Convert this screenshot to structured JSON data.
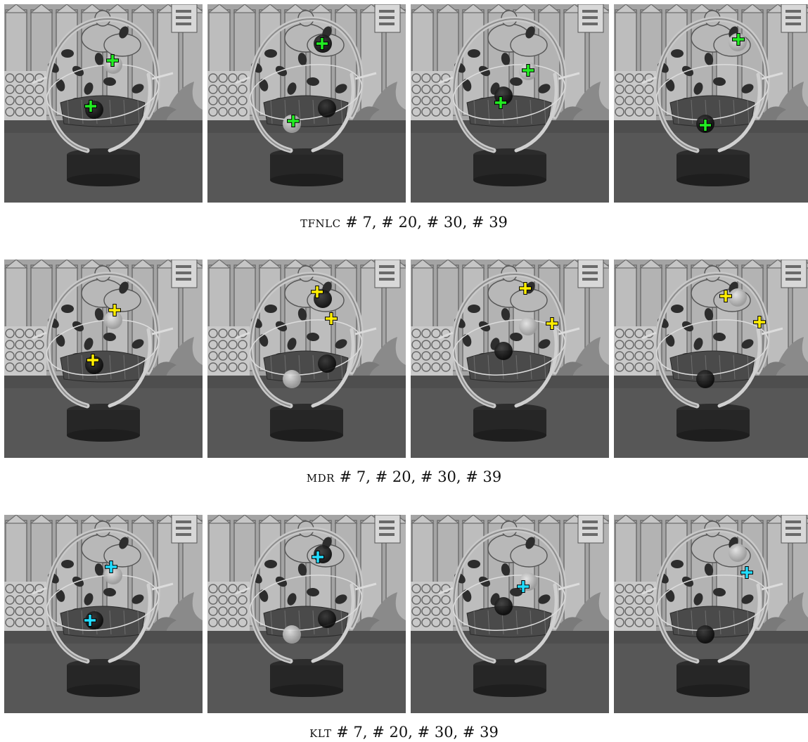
{
  "figure": {
    "rows": [
      {
        "method": "tfnlc",
        "frames_label": "# 7, # 20, # 30, # 39",
        "marker_color": "#22ee22",
        "marker_counts": [
          2,
          2,
          2,
          2
        ]
      },
      {
        "method": "mdr",
        "frames_label": "# 7, # 20, # 30, # 39",
        "marker_color": "#ffee00",
        "marker_counts": [
          2,
          2,
          2,
          2
        ]
      },
      {
        "method": "klt",
        "frames_label": "# 7, # 20, # 30, # 39",
        "marker_color": "#22ddff",
        "marker_counts": [
          2,
          1,
          1,
          1
        ]
      }
    ]
  }
}
